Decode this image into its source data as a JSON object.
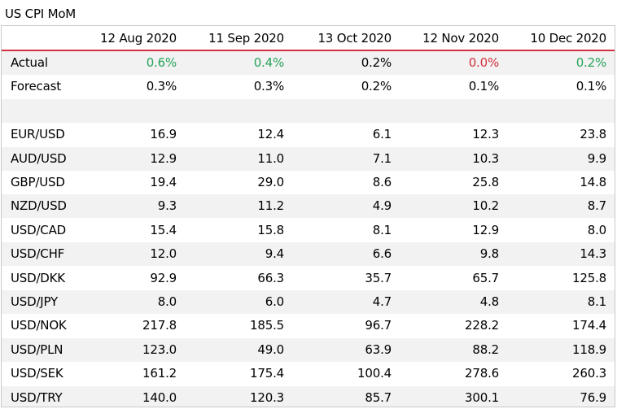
{
  "title": "US CPI MoM",
  "colors": {
    "positive": "#27a35a",
    "negative": "#d32f3f",
    "neutral": "#000000",
    "header_rule": "#d32f3f",
    "shade": "#f2f2f2"
  },
  "chart_data": {
    "type": "table",
    "title": "US CPI MoM",
    "columns": [
      "12 Aug 2020",
      "11 Sep 2020",
      "13 Oct 2020",
      "12 Nov 2020",
      "10 Dec 2020"
    ],
    "rows": [
      {
        "label": "Actual",
        "values": [
          "0.6%",
          "0.4%",
          "0.2%",
          "0.0%",
          "0.2%"
        ],
        "value_colors": [
          "positive",
          "positive",
          "neutral",
          "negative",
          "positive"
        ]
      },
      {
        "label": "Forecast",
        "values": [
          "0.3%",
          "0.3%",
          "0.2%",
          "0.1%",
          "0.1%"
        ]
      },
      {
        "label": "",
        "values": [
          "",
          "",
          "",
          "",
          ""
        ]
      },
      {
        "label": "EUR/USD",
        "values": [
          "16.9",
          "12.4",
          "6.1",
          "12.3",
          "23.8"
        ]
      },
      {
        "label": "AUD/USD",
        "values": [
          "12.9",
          "11.0",
          "7.1",
          "10.3",
          "9.9"
        ]
      },
      {
        "label": "GBP/USD",
        "values": [
          "19.4",
          "29.0",
          "8.6",
          "25.8",
          "14.8"
        ]
      },
      {
        "label": "NZD/USD",
        "values": [
          "9.3",
          "11.2",
          "4.9",
          "10.2",
          "8.7"
        ]
      },
      {
        "label": "USD/CAD",
        "values": [
          "15.4",
          "15.8",
          "8.1",
          "12.9",
          "8.0"
        ]
      },
      {
        "label": "USD/CHF",
        "values": [
          "12.0",
          "9.4",
          "6.6",
          "9.8",
          "14.3"
        ]
      },
      {
        "label": "USD/DKK",
        "values": [
          "92.9",
          "66.3",
          "35.7",
          "65.7",
          "125.8"
        ]
      },
      {
        "label": "USD/JPY",
        "values": [
          "8.0",
          "6.0",
          "4.7",
          "4.8",
          "8.1"
        ]
      },
      {
        "label": "USD/NOK",
        "values": [
          "217.8",
          "185.5",
          "96.7",
          "228.2",
          "174.4"
        ]
      },
      {
        "label": "USD/PLN",
        "values": [
          "123.0",
          "49.0",
          "63.9",
          "88.2",
          "118.9"
        ]
      },
      {
        "label": "USD/SEK",
        "values": [
          "161.2",
          "175.4",
          "100.4",
          "278.6",
          "260.3"
        ]
      },
      {
        "label": "USD/TRY",
        "values": [
          "140.0",
          "120.3",
          "85.7",
          "300.1",
          "76.9"
        ]
      }
    ]
  }
}
